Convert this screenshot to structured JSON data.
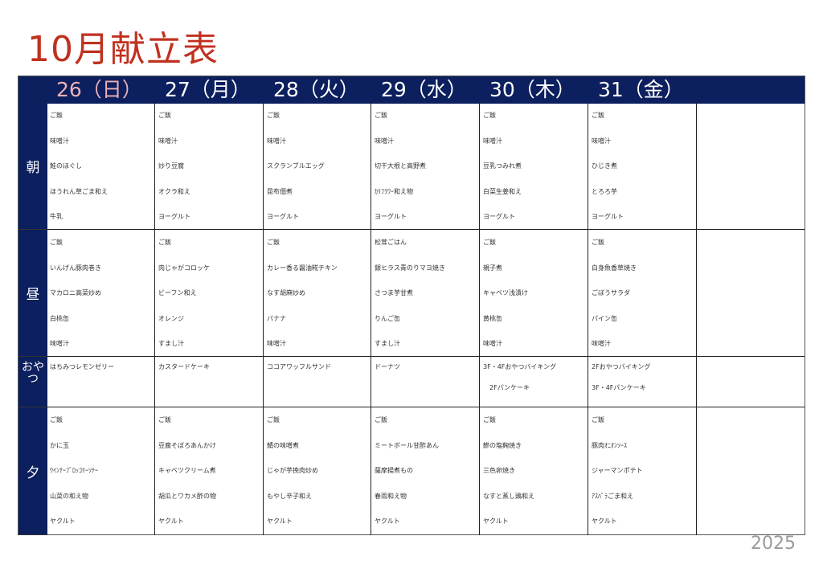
{
  "title": "10月献立表",
  "year": "2025",
  "colors": {
    "title": "#c0311f",
    "header_bg": "#0c1f5e",
    "sunday": "#eeb0b8"
  },
  "days": [
    "26（日）",
    "27（月）",
    "28（火）",
    "29（水）",
    "30（木）",
    "31（金）"
  ],
  "meals": [
    {
      "label": "朝",
      "cells": [
        [
          "ご飯",
          "味噌汁",
          "鮭のほぐし",
          "ほうれん草ごま和え",
          "牛乳"
        ],
        [
          "ご飯",
          "味噌汁",
          "炒り豆腐",
          "オクラ和え",
          "ヨーグルト"
        ],
        [
          "ご飯",
          "味噌汁",
          "スクランブルエッグ",
          "昆布佃煮",
          "ヨーグルト"
        ],
        [
          "ご飯",
          "味噌汁",
          "切干大根と高野煮",
          "ｶﾘﾌﾗﾜｰ和え物",
          "ヨーグルト"
        ],
        [
          "ご飯",
          "味噌汁",
          "豆乳つみれ煮",
          "白菜生姜和え",
          "ヨーグルト"
        ],
        [
          "ご飯",
          "味噌汁",
          "ひじき煮",
          "とろろ芋",
          "ヨーグルト"
        ]
      ]
    },
    {
      "label": "昼",
      "cells": [
        [
          "ご飯",
          "いんげん豚肉巻き",
          "マカロニ高菜炒め",
          "白桃缶",
          "味噌汁"
        ],
        [
          "ご飯",
          "肉じゃがコロッケ",
          "ビーフン和え",
          "オレンジ",
          "すまし汁"
        ],
        [
          "ご飯",
          "カレー香る醤油糀チキン",
          "なす胡麻炒め",
          "バナナ",
          "味噌汁"
        ],
        [
          "松茸ごはん",
          "銀ヒラス青のりマヨ焼き",
          "さつま芋甘煮",
          "りんご缶",
          "すまし汁"
        ],
        [
          "ご飯",
          "親子煮",
          "キャベツ浅漬け",
          "黄桃缶",
          "味噌汁"
        ],
        [
          "ご飯",
          "白身魚香草焼き",
          "ごぼうサラダ",
          "パイン缶",
          "味噌汁"
        ]
      ]
    },
    {
      "label": "おやつ",
      "cells": [
        [
          "はちみつレモンゼリー"
        ],
        [
          "カスタードケーキ"
        ],
        [
          "ココアワッフルサンド"
        ],
        [
          "ドーナツ"
        ],
        [
          "3F・4Fおやつバイキング",
          "　2Fパンケーキ"
        ],
        [
          "2Fおやつバイキング",
          "3F・4Fパンケーキ"
        ]
      ]
    },
    {
      "label": "夕",
      "cells": [
        [
          "ご飯",
          "かに玉",
          "ｳｲﾝﾅｰﾌﾞﾛｯｺﾘｰｿﾃｰ",
          "山菜の和え物",
          "ヤクルト"
        ],
        [
          "ご飯",
          "豆腐そぼろあんかけ",
          "キャベツクリーム煮",
          "胡瓜とワカメ酢の物",
          "ヤクルト"
        ],
        [
          "ご飯",
          "鯖の味噌煮",
          "じゃが芋挽肉炒め",
          "もやし辛子和え",
          "ヤクルト"
        ],
        [
          "ご飯",
          "ミートボール甘酢あん",
          "薩摩揚煮もの",
          "春雨和え物",
          "ヤクルト"
        ],
        [
          "ご飯",
          "鰺の塩麹焼き",
          "三色卵焼き",
          "なすと蒸し鶏和え",
          "ヤクルト"
        ],
        [
          "ご飯",
          "豚肉ｵﾆｵﾝｿｰｽ",
          "ジャーマンポテト",
          "ｱｽﾊﾟﾗごま和え",
          "ヤクルト"
        ]
      ]
    }
  ]
}
